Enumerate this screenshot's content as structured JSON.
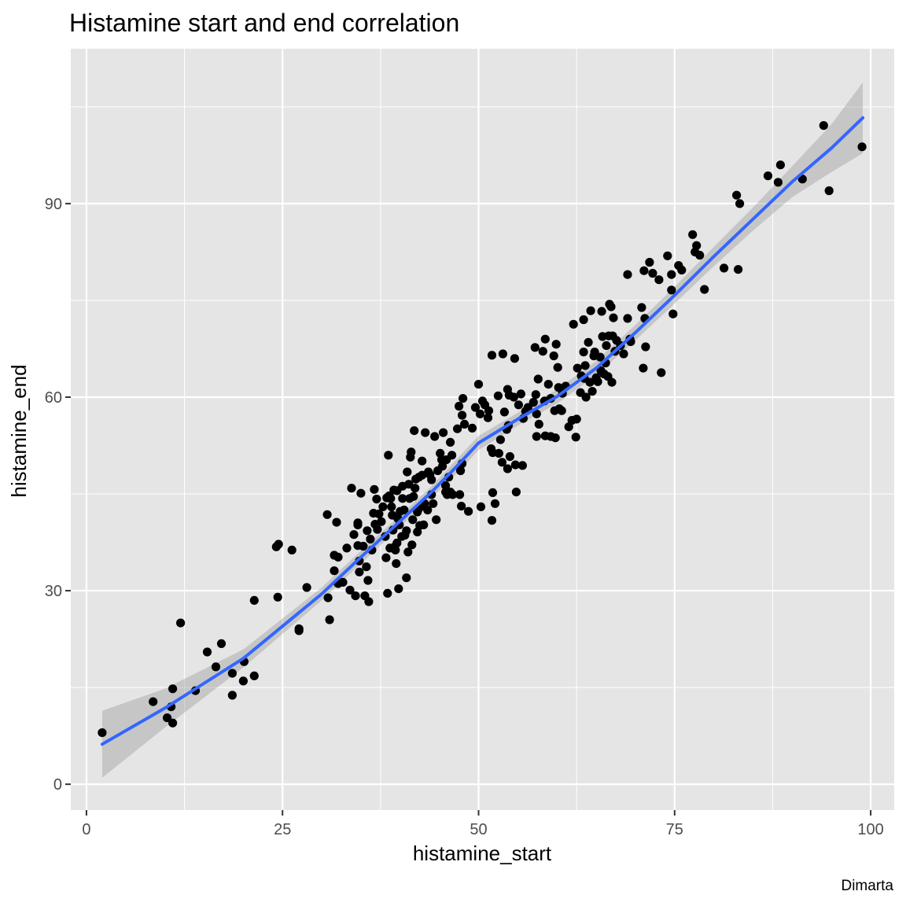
{
  "chart_data": {
    "type": "scatter",
    "title": "Histamine start and end correlation",
    "xlabel": "histamine_start",
    "ylabel": "histamine_end",
    "caption": "Dimarta",
    "xlim": [
      -2,
      103
    ],
    "ylim": [
      -4,
      114
    ],
    "x_ticks": [
      0,
      25,
      50,
      75,
      100
    ],
    "y_ticks": [
      0,
      30,
      60,
      90
    ],
    "grid": true,
    "colors": {
      "panel": "#e5e5e5",
      "grid": "#ffffff",
      "points": "#000000",
      "smooth_line": "#3366ff",
      "ribbon": "#999999"
    },
    "points": [
      [
        2.0,
        8.0
      ],
      [
        8.5,
        12.8
      ],
      [
        10.3,
        10.3
      ],
      [
        11.0,
        9.5
      ],
      [
        10.8,
        12.0
      ],
      [
        11.0,
        14.8
      ],
      [
        12.0,
        25.0
      ],
      [
        13.9,
        14.5
      ],
      [
        15.4,
        20.5
      ],
      [
        16.5,
        18.2
      ],
      [
        17.2,
        21.8
      ],
      [
        18.6,
        13.8
      ],
      [
        18.6,
        17.2
      ],
      [
        20.0,
        16.0
      ],
      [
        20.1,
        19.0
      ],
      [
        21.4,
        16.8
      ],
      [
        21.4,
        28.5
      ],
      [
        24.2,
        36.8
      ],
      [
        24.5,
        37.2
      ],
      [
        24.4,
        29.0
      ],
      [
        26.2,
        36.3
      ],
      [
        27.1,
        23.8
      ],
      [
        27.1,
        24.1
      ],
      [
        28.1,
        30.5
      ],
      [
        30.7,
        41.8
      ],
      [
        30.8,
        28.9
      ],
      [
        31.0,
        25.5
      ],
      [
        31.6,
        33.1
      ],
      [
        31.6,
        35.5
      ],
      [
        31.9,
        40.6
      ],
      [
        32.1,
        35.2
      ],
      [
        32.1,
        31.1
      ],
      [
        32.7,
        31.3
      ],
      [
        33.2,
        36.6
      ],
      [
        33.6,
        30.1
      ],
      [
        33.8,
        45.9
      ],
      [
        34.1,
        38.7
      ],
      [
        34.3,
        29.2
      ],
      [
        34.6,
        40.2
      ],
      [
        34.6,
        40.5
      ],
      [
        34.6,
        37.0
      ],
      [
        34.8,
        34.6
      ],
      [
        34.8,
        32.9
      ],
      [
        35.0,
        45.1
      ],
      [
        35.3,
        36.9
      ],
      [
        35.5,
        29.2
      ],
      [
        35.7,
        33.7
      ],
      [
        35.8,
        39.3
      ],
      [
        35.9,
        31.6
      ],
      [
        36.0,
        28.3
      ],
      [
        36.2,
        38.0
      ],
      [
        36.4,
        36.3
      ],
      [
        36.6,
        42.0
      ],
      [
        36.7,
        45.7
      ],
      [
        36.8,
        40.3
      ],
      [
        37.0,
        44.2
      ],
      [
        37.1,
        39.5
      ],
      [
        37.3,
        41.9
      ],
      [
        37.6,
        40.7
      ],
      [
        37.8,
        43.0
      ],
      [
        38.1,
        38.4
      ],
      [
        38.2,
        35.1
      ],
      [
        38.3,
        44.4
      ],
      [
        38.4,
        29.6
      ],
      [
        38.5,
        51.0
      ],
      [
        38.6,
        44.7
      ],
      [
        38.7,
        36.6
      ],
      [
        38.8,
        44.3
      ],
      [
        38.9,
        43.0
      ],
      [
        39.0,
        41.7
      ],
      [
        39.1,
        39.4
      ],
      [
        39.2,
        45.6
      ],
      [
        39.3,
        36.8
      ],
      [
        39.4,
        36.3
      ],
      [
        39.5,
        34.2
      ],
      [
        39.6,
        37.4
      ],
      [
        39.6,
        45.5
      ],
      [
        39.7,
        41.2
      ],
      [
        39.8,
        30.3
      ],
      [
        39.9,
        40.2
      ],
      [
        40.0,
        42.3
      ],
      [
        40.2,
        38.4
      ],
      [
        40.3,
        46.2
      ],
      [
        40.3,
        44.3
      ],
      [
        40.5,
        42.5
      ],
      [
        40.6,
        38.6
      ],
      [
        40.8,
        39.3
      ],
      [
        40.8,
        32.0
      ],
      [
        40.9,
        48.4
      ],
      [
        41.0,
        36.0
      ],
      [
        41.1,
        46.5
      ],
      [
        41.2,
        44.3
      ],
      [
        41.3,
        50.7
      ],
      [
        41.4,
        51.5
      ],
      [
        41.5,
        37.1
      ],
      [
        41.6,
        41.0
      ],
      [
        41.7,
        44.6
      ],
      [
        41.8,
        54.8
      ],
      [
        41.9,
        45.9
      ],
      [
        42.0,
        47.3
      ],
      [
        42.2,
        42.2
      ],
      [
        42.2,
        39.1
      ],
      [
        42.3,
        42.6
      ],
      [
        42.4,
        47.6
      ],
      [
        42.5,
        40.1
      ],
      [
        42.6,
        43.0
      ],
      [
        42.8,
        47.9
      ],
      [
        42.8,
        50.1
      ],
      [
        43.0,
        40.2
      ],
      [
        43.1,
        43.5
      ],
      [
        43.2,
        54.5
      ],
      [
        43.5,
        42.5
      ],
      [
        43.6,
        48.4
      ],
      [
        43.8,
        48.0
      ],
      [
        44.0,
        47.2
      ],
      [
        44.0,
        44.9
      ],
      [
        44.2,
        43.5
      ],
      [
        44.4,
        53.9
      ],
      [
        44.6,
        41.0
      ],
      [
        44.8,
        48.6
      ],
      [
        45.1,
        51.3
      ],
      [
        45.3,
        50.3
      ],
      [
        45.4,
        49.3
      ],
      [
        45.5,
        54.5
      ],
      [
        45.8,
        45.3
      ],
      [
        45.8,
        46.3
      ],
      [
        45.9,
        50.3
      ],
      [
        46.0,
        44.9
      ],
      [
        46.2,
        47.6
      ],
      [
        46.4,
        53.0
      ],
      [
        46.4,
        45.3
      ],
      [
        46.6,
        51.0
      ],
      [
        46.7,
        44.9
      ],
      [
        47.3,
        55.1
      ],
      [
        47.5,
        58.6
      ],
      [
        47.6,
        44.9
      ],
      [
        47.7,
        48.6
      ],
      [
        47.8,
        43.1
      ],
      [
        47.9,
        57.2
      ],
      [
        47.9,
        49.7
      ],
      [
        48.0,
        59.8
      ],
      [
        48.2,
        55.8
      ],
      [
        48.7,
        42.3
      ],
      [
        49.2,
        55.2
      ],
      [
        49.6,
        58.4
      ],
      [
        50.0,
        62.0
      ],
      [
        50.2,
        57.4
      ],
      [
        50.3,
        43.0
      ],
      [
        50.5,
        59.4
      ],
      [
        50.8,
        58.8
      ],
      [
        51.2,
        56.8
      ],
      [
        51.3,
        57.9
      ],
      [
        51.6,
        52.0
      ],
      [
        51.7,
        40.9
      ],
      [
        51.7,
        66.5
      ],
      [
        51.8,
        45.2
      ],
      [
        51.8,
        51.4
      ],
      [
        52.1,
        43.5
      ],
      [
        52.5,
        60.2
      ],
      [
        52.6,
        51.3
      ],
      [
        52.8,
        53.4
      ],
      [
        53.0,
        49.9
      ],
      [
        53.1,
        66.7
      ],
      [
        53.3,
        57.7
      ],
      [
        53.6,
        55.0
      ],
      [
        53.7,
        48.9
      ],
      [
        53.7,
        61.2
      ],
      [
        53.8,
        55.6
      ],
      [
        53.9,
        60.3
      ],
      [
        54.0,
        50.8
      ],
      [
        54.5,
        60.0
      ],
      [
        54.6,
        66.0
      ],
      [
        54.7,
        49.5
      ],
      [
        54.8,
        45.3
      ],
      [
        55.1,
        58.8
      ],
      [
        55.4,
        60.5
      ],
      [
        55.6,
        49.4
      ],
      [
        55.7,
        56.7
      ],
      [
        56.0,
        57.8
      ],
      [
        56.3,
        58.4
      ],
      [
        57.0,
        59.2
      ],
      [
        57.2,
        67.7
      ],
      [
        57.3,
        60.4
      ],
      [
        57.4,
        53.9
      ],
      [
        57.4,
        57.4
      ],
      [
        57.6,
        62.8
      ],
      [
        57.7,
        55.8
      ],
      [
        58.2,
        67.1
      ],
      [
        58.4,
        59.4
      ],
      [
        58.5,
        54.0
      ],
      [
        58.5,
        69.0
      ],
      [
        58.9,
        62.0
      ],
      [
        59.2,
        59.8
      ],
      [
        59.2,
        53.9
      ],
      [
        59.6,
        66.4
      ],
      [
        59.7,
        57.9
      ],
      [
        59.8,
        53.7
      ],
      [
        59.9,
        68.2
      ],
      [
        60.1,
        64.6
      ],
      [
        60.2,
        61.5
      ],
      [
        60.3,
        58.2
      ],
      [
        60.6,
        57.9
      ],
      [
        60.7,
        60.6
      ],
      [
        61.1,
        61.7
      ],
      [
        61.5,
        55.4
      ],
      [
        61.9,
        56.4
      ],
      [
        62.1,
        71.3
      ],
      [
        62.4,
        53.8
      ],
      [
        62.5,
        56.6
      ],
      [
        62.6,
        64.5
      ],
      [
        63.0,
        60.7
      ],
      [
        63.1,
        63.3
      ],
      [
        63.4,
        72.0
      ],
      [
        63.4,
        67.0
      ],
      [
        63.5,
        62.9
      ],
      [
        63.6,
        64.9
      ],
      [
        63.7,
        60.0
      ],
      [
        64.0,
        68.5
      ],
      [
        64.2,
        62.3
      ],
      [
        64.3,
        73.4
      ],
      [
        64.5,
        60.9
      ],
      [
        64.7,
        66.4
      ],
      [
        64.8,
        67.0
      ],
      [
        65.0,
        63.0
      ],
      [
        65.2,
        62.4
      ],
      [
        65.5,
        66.2
      ],
      [
        65.6,
        64.1
      ],
      [
        65.7,
        73.3
      ],
      [
        65.8,
        69.4
      ],
      [
        66.0,
        63.6
      ],
      [
        66.2,
        65.3
      ],
      [
        66.3,
        68.0
      ],
      [
        66.5,
        63.2
      ],
      [
        66.6,
        69.5
      ],
      [
        66.7,
        74.4
      ],
      [
        66.9,
        74.0
      ],
      [
        67.0,
        62.3
      ],
      [
        67.1,
        69.5
      ],
      [
        67.2,
        72.3
      ],
      [
        67.4,
        67.1
      ],
      [
        67.6,
        68.8
      ],
      [
        68.1,
        68.0
      ],
      [
        68.5,
        66.7
      ],
      [
        69.0,
        72.2
      ],
      [
        69.0,
        79.0
      ],
      [
        69.3,
        69.0
      ],
      [
        69.4,
        68.6
      ],
      [
        70.8,
        73.9
      ],
      [
        71.1,
        79.6
      ],
      [
        71.0,
        64.5
      ],
      [
        71.3,
        67.8
      ],
      [
        71.2,
        72.2
      ],
      [
        71.8,
        80.9
      ],
      [
        72.2,
        79.2
      ],
      [
        73.0,
        78.2
      ],
      [
        73.3,
        63.8
      ],
      [
        74.1,
        81.9
      ],
      [
        74.6,
        76.6
      ],
      [
        74.6,
        79.0
      ],
      [
        74.8,
        72.9
      ],
      [
        75.5,
        80.4
      ],
      [
        75.9,
        79.7
      ],
      [
        77.3,
        85.2
      ],
      [
        77.6,
        82.5
      ],
      [
        77.8,
        83.5
      ],
      [
        78.2,
        82.0
      ],
      [
        78.8,
        76.7
      ],
      [
        81.3,
        80.0
      ],
      [
        82.9,
        91.3
      ],
      [
        83.1,
        79.8
      ],
      [
        83.3,
        90.0
      ],
      [
        86.9,
        94.3
      ],
      [
        88.2,
        93.3
      ],
      [
        88.5,
        96.0
      ],
      [
        91.3,
        93.8
      ],
      [
        94.0,
        102.1
      ],
      [
        94.7,
        92.0
      ],
      [
        98.9,
        98.8
      ]
    ],
    "smooth_line": {
      "x": [
        2,
        10,
        20,
        30,
        35,
        40,
        44,
        47,
        50,
        55,
        60,
        65,
        70,
        75,
        80,
        85,
        90,
        95,
        99
      ],
      "y": [
        6.2,
        11.8,
        19.5,
        29.5,
        35.2,
        40.8,
        45.3,
        49.0,
        52.9,
        56.6,
        60.1,
        64.5,
        70.0,
        75.8,
        81.8,
        87.6,
        93.4,
        98.6,
        103.3
      ],
      "lower": [
        1.0,
        8.8,
        18.1,
        28.5,
        34.2,
        39.9,
        44.4,
        47.9,
        51.8,
        55.6,
        59.0,
        63.4,
        68.8,
        74.5,
        80.3,
        85.8,
        91.0,
        94.9,
        97.8
      ],
      "upper": [
        11.4,
        14.8,
        20.9,
        30.5,
        36.2,
        41.7,
        46.2,
        50.1,
        54.0,
        57.6,
        61.2,
        65.6,
        71.2,
        77.1,
        83.3,
        89.4,
        95.8,
        102.3,
        108.8
      ]
    }
  }
}
